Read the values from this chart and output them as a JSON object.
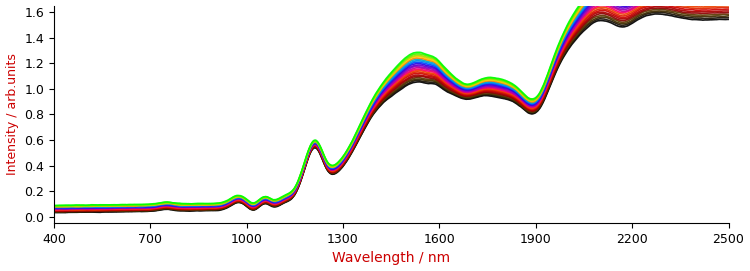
{
  "xlabel": "Wavelength / nm",
  "ylabel": "Intensity / arb.units",
  "xlabel_color": "#cc0000",
  "ylabel_color": "#cc0000",
  "xlim": [
    400,
    2500
  ],
  "ylim": [
    -0.05,
    1.65
  ],
  "xticks": [
    400,
    700,
    1000,
    1300,
    1600,
    1900,
    2200,
    2500
  ],
  "yticks": [
    0.0,
    0.2,
    0.4,
    0.6,
    0.8,
    1.0,
    1.2,
    1.4,
    1.6
  ],
  "n_spectra": 22,
  "lw": 1.2,
  "figsize": [
    7.5,
    2.71
  ],
  "dpi": 100,
  "colors": [
    "#000000",
    "#1a1208",
    "#3d2b00",
    "#5a3800",
    "#8b0000",
    "#aa0000",
    "#cc0000",
    "#dd2200",
    "#ee4400",
    "#ff0066",
    "#cc0088",
    "#9900bb",
    "#6600cc",
    "#3300dd",
    "#0044ff",
    "#0088ee",
    "#00aacc",
    "#ff8800",
    "#ffcc00",
    "#aadd00",
    "#55ee00",
    "#00ff00"
  ]
}
